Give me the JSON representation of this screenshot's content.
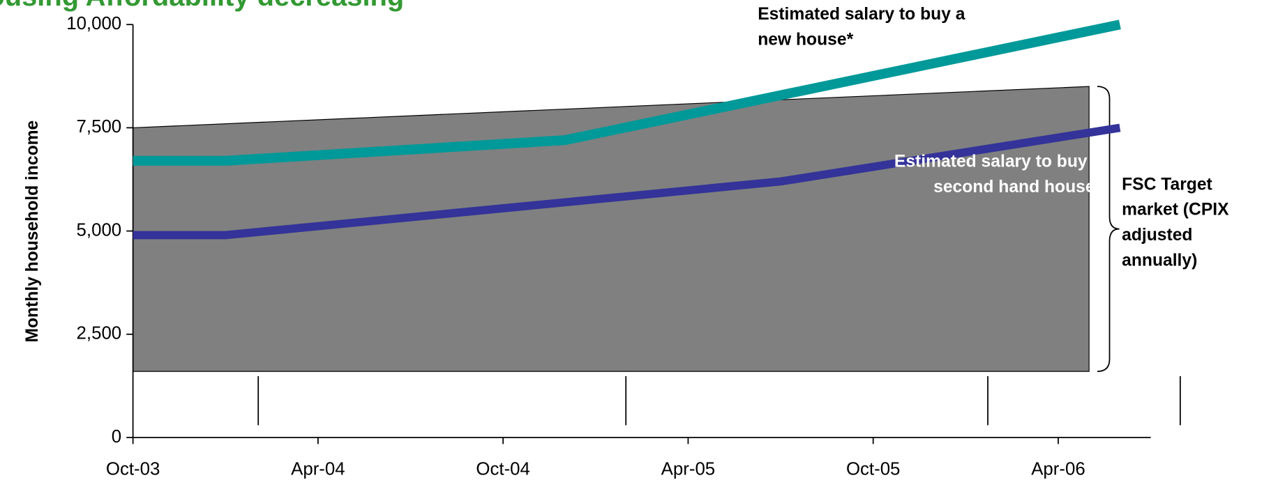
{
  "chart_data": {
    "type": "line",
    "title": "Housing Affordability decreasing",
    "y_label": "Monthly household income",
    "ylim": [
      0,
      10000
    ],
    "yticks": [
      0,
      {
        "value": 2500,
        "label": "2,500"
      },
      {
        "value": 5000,
        "label": "5,000"
      },
      {
        "value": 7500,
        "label": "7,500"
      },
      {
        "value": 10000,
        "label": "10,000"
      }
    ],
    "xlim": [
      "2003-10",
      "2006-07"
    ],
    "xticks": [
      {
        "value": "2003-10",
        "label": "Oct-03"
      },
      {
        "value": "2004-04",
        "label": "Apr-04"
      },
      {
        "value": "2004-10",
        "label": "Oct-04"
      },
      {
        "value": "2005-04",
        "label": "Apr-05"
      },
      {
        "value": "2005-10",
        "label": "Oct-05"
      },
      {
        "value": "2006-04",
        "label": "Apr-06"
      }
    ],
    "band": {
      "name": "FSC Target market (CPIX adjusted annually)",
      "color": "#808080",
      "x": [
        "2003-10",
        "2006-05"
      ],
      "lower": [
        1600,
        1600
      ],
      "upper": [
        7500,
        8500
      ]
    },
    "series": [
      {
        "name": "Estimated salary to buy a new house*",
        "color": "#009999",
        "x": [
          "2003-10",
          "2004-01",
          "2004-12",
          "2006-06"
        ],
        "values": [
          6700,
          6700,
          7200,
          10000
        ]
      },
      {
        "name": "Estimated salary to buy a second hand house*",
        "color": "#333399",
        "x": [
          "2003-10",
          "2004-01",
          "2005-07",
          "2006-06"
        ],
        "values": [
          4900,
          4900,
          6200,
          7500
        ]
      }
    ]
  }
}
